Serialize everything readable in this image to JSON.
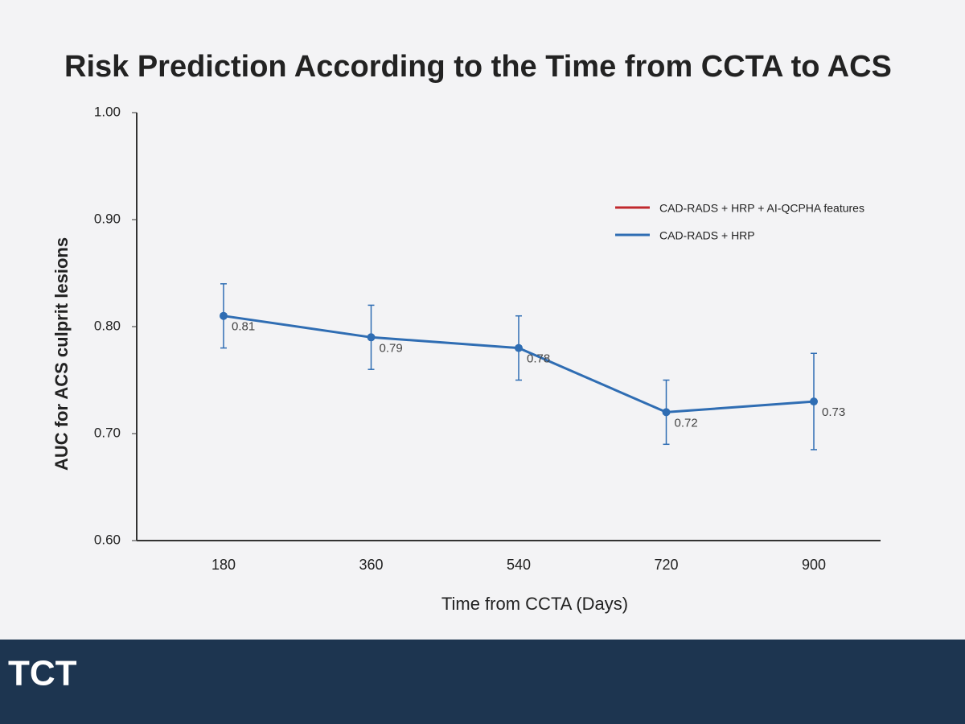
{
  "chart_data": {
    "type": "line",
    "title": "Risk Prediction According to the Time from CCTA to ACS",
    "x_label": "Time from CCTA (Days)",
    "y_label": "AUC for ACS culprit lesions",
    "categories": [
      "180",
      "360",
      "540",
      "720",
      "900"
    ],
    "series": [
      {
        "name": "CAD-RADS + HRP + AI-QCPHA features",
        "color": "#c0282d",
        "values": [
          null,
          null,
          null,
          null,
          null
        ]
      },
      {
        "name": "CAD-RADS + HRP",
        "color": "#2f6db3",
        "values": [
          0.81,
          0.79,
          0.78,
          0.72,
          0.73
        ],
        "errors": [
          0.03,
          0.03,
          0.03,
          0.03,
          0.045
        ]
      }
    ],
    "ylim": [
      0.6,
      1.0
    ],
    "yticks": [
      {
        "value": 0.6,
        "label": "0.60"
      },
      {
        "value": 0.7,
        "label": "0.70"
      },
      {
        "value": 0.8,
        "label": "0.80"
      },
      {
        "value": 0.9,
        "label": "0.90"
      },
      {
        "value": 1.0,
        "label": "1.00"
      }
    ],
    "grid": false,
    "legend": "upper right",
    "logo": "TCT"
  }
}
